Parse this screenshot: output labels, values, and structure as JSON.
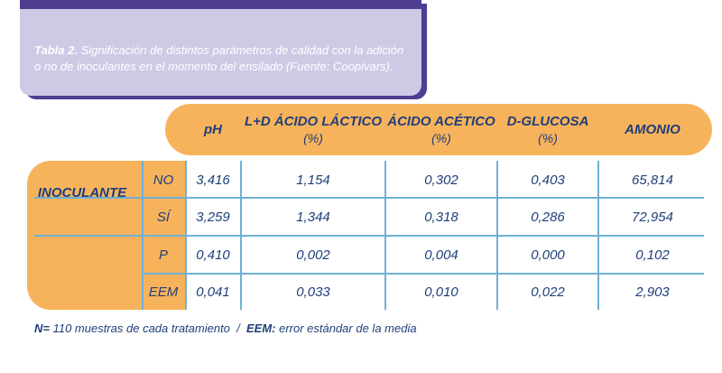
{
  "caption": {
    "label": "Tabla 2.",
    "line1": "Significación de distintos parámetros de calidad con la adición",
    "line2": "o no de inoculantes en el momento del ensilado (Fuente: Coopivars)."
  },
  "columns": [
    {
      "name": "pH",
      "unit": ""
    },
    {
      "name": "L+D ÁCIDO LÁCTICO",
      "unit": "(%)"
    },
    {
      "name": "ÁCIDO ACÉTICO",
      "unit": "(%)"
    },
    {
      "name": "D-GLUCOSA",
      "unit": "(%)"
    },
    {
      "name": "AMONIO",
      "unit": ""
    }
  ],
  "group_label": "INOCULANTE",
  "rows": [
    {
      "label": "NO",
      "values": [
        "3,416",
        "1,154",
        "0,302",
        "0,403",
        "65,814"
      ]
    },
    {
      "label": "SÍ",
      "values": [
        "3,259",
        "1,344",
        "0,318",
        "0,286",
        "72,954"
      ]
    },
    {
      "label": "P",
      "values": [
        "0,410",
        "0,002",
        "0,004",
        "0,000",
        "0,102"
      ]
    },
    {
      "label": "EEM",
      "values": [
        "0,041",
        "0,033",
        "0,010",
        "0,022",
        "2,903"
      ]
    }
  ],
  "footnote": {
    "n_label": "N=",
    "n_text": " 110 muestras de cada tratamiento",
    "sep": "  /  ",
    "eem_label": "EEM:",
    "eem_text": " error estándar de la media"
  },
  "colors": {
    "orange": "#f7b35c",
    "purple": "#4f3d92",
    "lavender": "#cfc9e5",
    "navy": "#1f3f7a",
    "grid": "#6fb0d8"
  }
}
